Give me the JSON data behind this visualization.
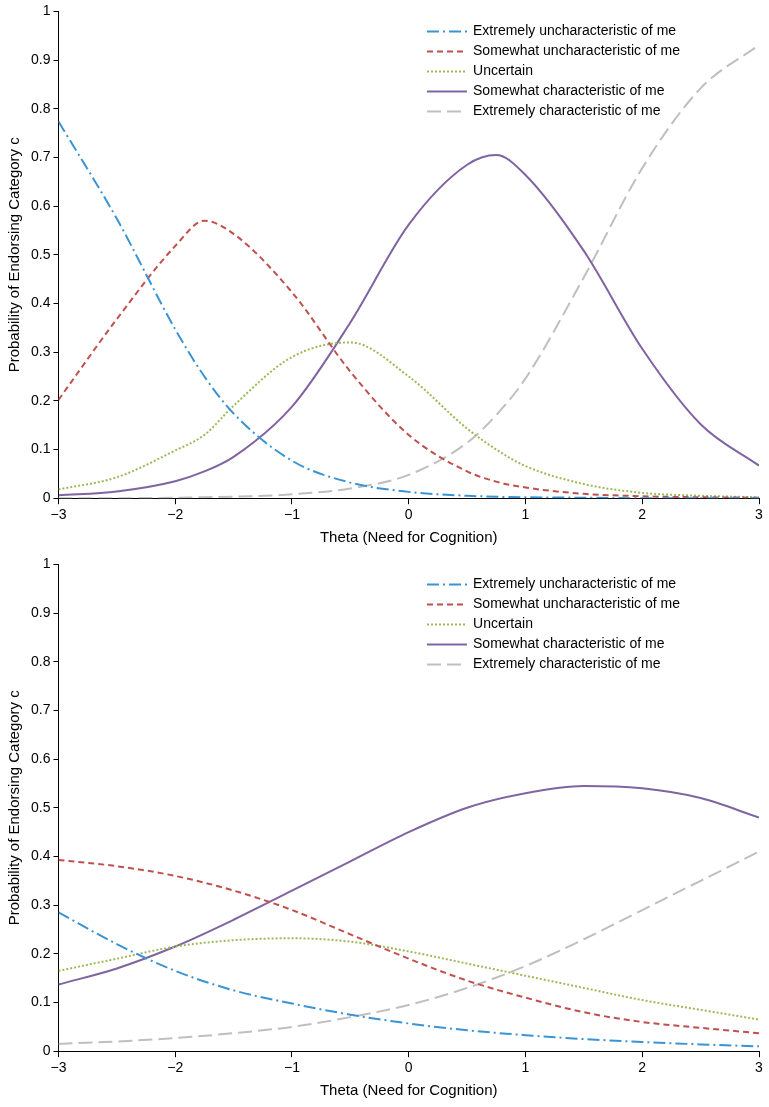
{
  "chart_data": [
    {
      "type": "line",
      "xlabel": "Theta (Need for Cognition)",
      "ylabel": "Probability of Endorsing Category c",
      "x": [
        -3,
        -2.5,
        -2,
        -1.75,
        -1.5,
        -1,
        -0.5,
        0,
        0.5,
        0.75,
        1,
        1.5,
        2,
        2.5,
        3
      ],
      "series": [
        {
          "name": "Extremely uncharacteristic of me",
          "color": "#3b94d2",
          "line_style": "dashdot",
          "values": [
            0.774,
            0.574,
            0.347,
            0.25,
            0.174,
            0.077,
            0.032,
            0.013,
            0.005,
            0.003,
            0.002,
            0.001,
            0,
            0,
            0
          ]
        },
        {
          "name": "Somewhat uncharacteristic of me",
          "color": "#c0504d",
          "line_style": "dashed",
          "values": [
            0.202,
            0.368,
            0.518,
            0.57,
            0.543,
            0.423,
            0.26,
            0.13,
            0.055,
            0.034,
            0.022,
            0.009,
            0.004,
            0.002,
            0.001
          ]
        },
        {
          "name": "Uncertain",
          "color": "#9bbb59",
          "line_style": "dotted",
          "values": [
            0.018,
            0.043,
            0.098,
            0.13,
            0.19,
            0.29,
            0.32,
            0.25,
            0.143,
            0.1,
            0.066,
            0.029,
            0.011,
            0.005,
            0.002
          ]
        },
        {
          "name": "Somewhat characteristic of me",
          "color": "#8064a2",
          "line_style": "solid",
          "values": [
            0.006,
            0.014,
            0.035,
            0.055,
            0.085,
            0.188,
            0.361,
            0.562,
            0.685,
            0.705,
            0.664,
            0.508,
            0.307,
            0.152,
            0.067
          ]
        },
        {
          "name": "Extremely characteristic of me",
          "color": "#bfbfbf",
          "line_style": "longdash",
          "values": [
            0,
            0,
            0.001,
            0.002,
            0.003,
            0.008,
            0.02,
            0.048,
            0.114,
            0.171,
            0.246,
            0.454,
            0.678,
            0.842,
            0.931
          ]
        }
      ],
      "xlim": [
        -3,
        3
      ],
      "xticks": [
        {
          "value": -3,
          "label": "−3"
        },
        {
          "value": -2,
          "label": "−2"
        },
        {
          "value": -1,
          "label": "−1"
        },
        0,
        1,
        2,
        3
      ],
      "ylim": [
        0,
        1
      ],
      "yticks": [
        0,
        0.1,
        0.2,
        0.3,
        0.4,
        0.5,
        0.6,
        0.7,
        0.8,
        0.9,
        1
      ],
      "grid": false,
      "legend": "top right",
      "marker": "none"
    },
    {
      "type": "line",
      "xlabel": "Theta (Need for Cognition)",
      "ylabel": "Probability of Endorsing Category c",
      "x": [
        -3,
        -2.5,
        -2,
        -1.5,
        -1,
        -0.5,
        0,
        0.5,
        1,
        1.5,
        2,
        2.5,
        3
      ],
      "series": [
        {
          "name": "Extremely uncharacteristic of me",
          "color": "#3b94d2",
          "line_style": "dashdot",
          "values": [
            0.285,
            0.22,
            0.165,
            0.125,
            0.098,
            0.075,
            0.057,
            0.043,
            0.033,
            0.025,
            0.019,
            0.014,
            0.01
          ]
        },
        {
          "name": "Somewhat uncharacteristic of me",
          "color": "#c0504d",
          "line_style": "dashed",
          "values": [
            0.393,
            0.38,
            0.36,
            0.33,
            0.29,
            0.24,
            0.19,
            0.145,
            0.11,
            0.08,
            0.06,
            0.048,
            0.037
          ]
        },
        {
          "name": "Uncertain",
          "color": "#9bbb59",
          "line_style": "dotted",
          "values": [
            0.165,
            0.19,
            0.215,
            0.228,
            0.232,
            0.225,
            0.205,
            0.18,
            0.155,
            0.13,
            0.105,
            0.085,
            0.065
          ]
        },
        {
          "name": "Somewhat characteristic of me",
          "color": "#8064a2",
          "line_style": "solid",
          "values": [
            0.137,
            0.17,
            0.215,
            0.27,
            0.33,
            0.39,
            0.45,
            0.5,
            0.53,
            0.545,
            0.54,
            0.52,
            0.48
          ]
        },
        {
          "name": "Extremely characteristic of me",
          "color": "#bfbfbf",
          "line_style": "longdash",
          "values": [
            0.015,
            0.02,
            0.027,
            0.037,
            0.05,
            0.07,
            0.095,
            0.13,
            0.175,
            0.23,
            0.29,
            0.35,
            0.41
          ]
        }
      ],
      "xlim": [
        -3,
        3
      ],
      "xticks": [
        {
          "value": -3,
          "label": "−3"
        },
        {
          "value": -2,
          "label": "−2"
        },
        {
          "value": -1,
          "label": "−1"
        },
        0,
        1,
        2,
        3
      ],
      "ylim": [
        0,
        1
      ],
      "yticks": [
        0,
        0.1,
        0.2,
        0.3,
        0.4,
        0.5,
        0.6,
        0.7,
        0.8,
        0.9,
        1
      ],
      "grid": false,
      "legend": "top right",
      "marker": "none"
    }
  ]
}
